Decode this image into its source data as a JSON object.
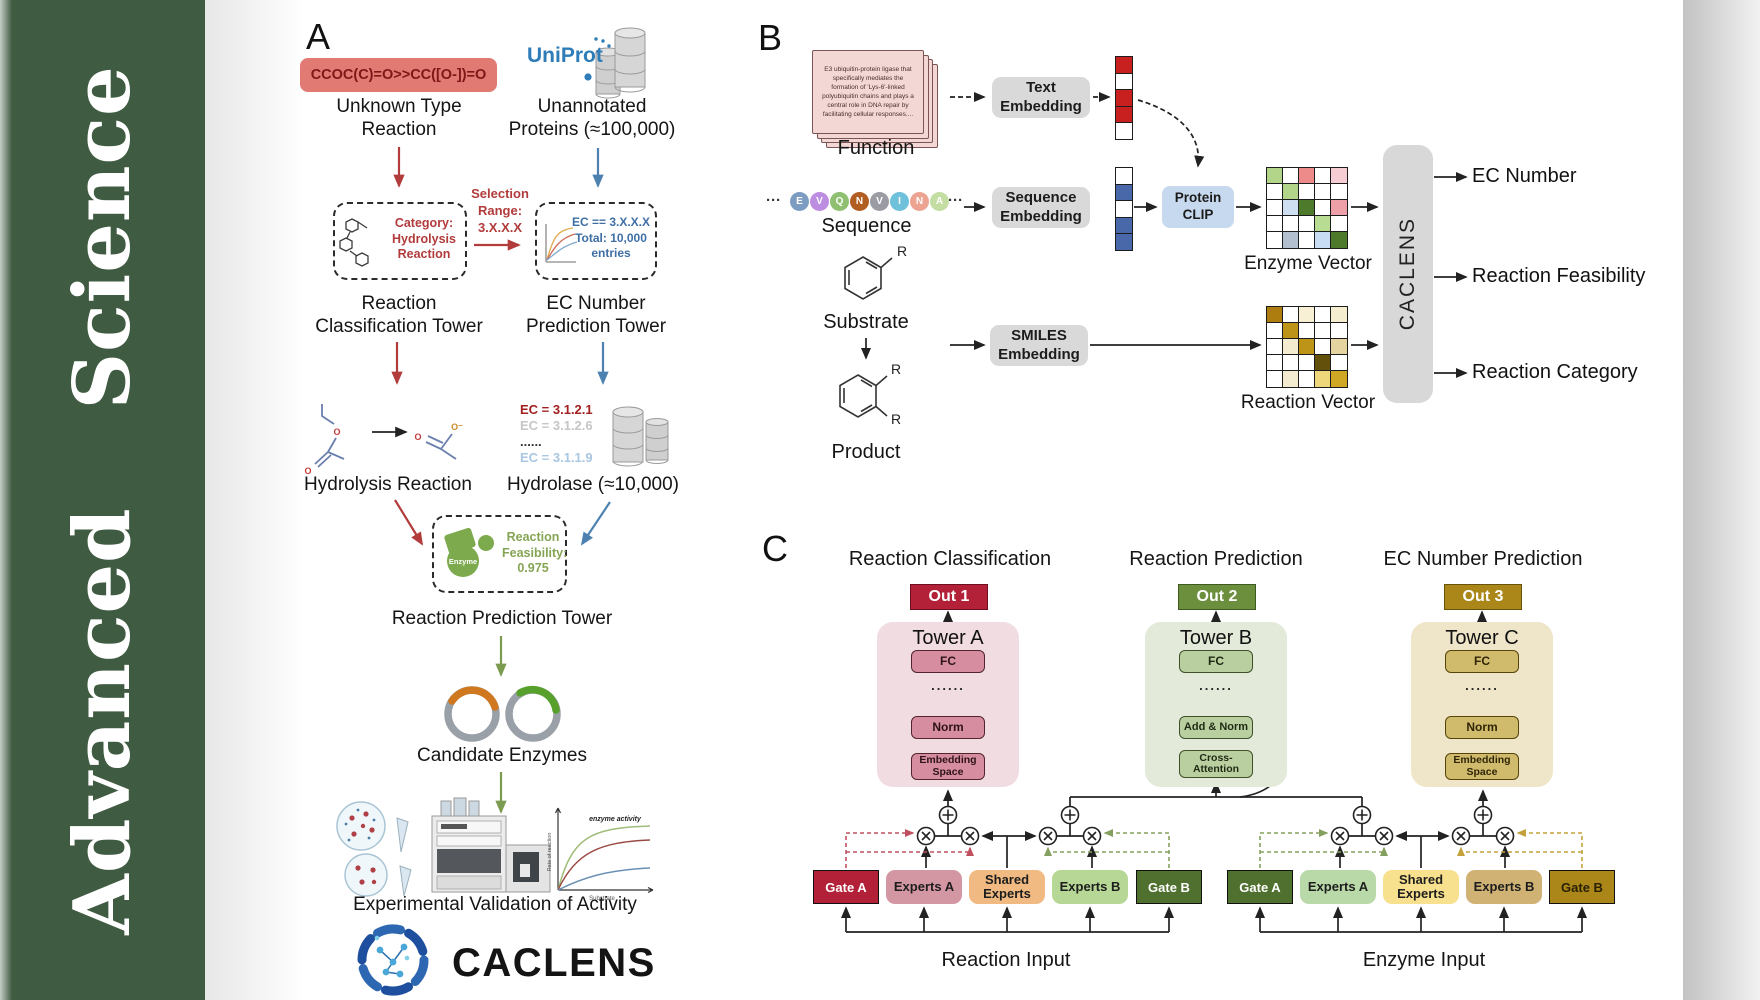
{
  "journal": {
    "name": "Advanced  Science",
    "sidebar_color": "#3f5b41"
  },
  "panel_a": {
    "label": "A",
    "smiles": "CCOC(C)=O>>CC([O-])=O",
    "unknown_reaction": "Unknown Type\nReaction",
    "uniprot": "UniProt",
    "unannotated": "Unannotated\nProteins (≈100,000)",
    "selection_range": "Selection\nRange:\n3.X.X.X",
    "category_box": "Category:\nHydrolysis\nReaction",
    "ec_box": "EC == 3.X.X.X\nTotal: 10,000\nentries",
    "classification_tower": "Reaction\nClassification Tower",
    "ec_tower": "EC Number\nPrediction Tower",
    "ec_list": [
      {
        "text": "EC = 3.1.2.1",
        "color": "#a32020"
      },
      {
        "text": "EC = 3.1.2.6",
        "color": "#c6c6c6"
      },
      {
        "text": "......",
        "color": "#333333"
      },
      {
        "text": "EC = 3.1.1.9",
        "color": "#a9c7e2"
      }
    ],
    "hydrolysis_reaction": "Hydrolysis Reaction",
    "hydrolase": "Hydrolase (≈10,000)",
    "enzyme_badge": "Enzyme",
    "feasibility": "Reaction\nFeasibility:\n0.975",
    "prediction_tower": "Reaction Prediction Tower",
    "candidate_enzymes": "Candidate Enzymes",
    "activity_plot": {
      "curve_label": "enzyme activity",
      "ylabel": "Rate of reaction",
      "xlabel": "Substrate"
    },
    "validation": "Experimental Validation of Activity",
    "brand": "CACLENS",
    "atoms": {
      "o": "O",
      "o_minus": "O⁻",
      "r": "R"
    }
  },
  "panel_b": {
    "label": "B",
    "function_card": "E3 ubiquitin-protein ligase that specifically mediates the formation of 'Lys-6'-linked polyubiquitin chains and plays a central role in DNA repair by facilitating cellular responses....",
    "function_label": "Function",
    "ellipsis": "···",
    "sequence_residues": [
      {
        "letter": "E",
        "color": "#7d9cc2"
      },
      {
        "letter": "V",
        "color": "#bd8de2"
      },
      {
        "letter": "Q",
        "color": "#8fbf70"
      },
      {
        "letter": "N",
        "color": "#b25d22"
      },
      {
        "letter": "V",
        "color": "#9b9ba3"
      },
      {
        "letter": "I",
        "color": "#6fc0da"
      },
      {
        "letter": "N",
        "color": "#eda392"
      },
      {
        "letter": "A",
        "color": "#c3dda2"
      }
    ],
    "sequence_label": "Sequence",
    "substrate_label": "Substrate",
    "product_label": "Product",
    "text_embedding": "Text\nEmbedding",
    "sequence_embedding": "Sequence\nEmbedding",
    "smiles_embedding": "SMILES\nEmbedding",
    "protein_clip": "Protein\nCLIP",
    "text_vector": [
      "#c81f1f",
      "#ffffff",
      "#c81f1f",
      "#c81f1f",
      "#ffffff"
    ],
    "sequence_vector": [
      "#ffffff",
      "#4968aa",
      "#ffffff",
      "#4968aa",
      "#4968aa"
    ],
    "enzyme_vector_label": "Enzyme Vector",
    "reaction_vector_label": "Reaction Vector",
    "enzyme_grid": [
      "#b2d589",
      "#ffffff",
      "#ed8a8a",
      "#ffffff",
      "#f6cdd2",
      "#ffffff",
      "#b2d589",
      "#ffffff",
      "#ffffff",
      "#ffffff",
      "#ffffff",
      "#cfdff2",
      "#4e7a2b",
      "#ffffff",
      "#eda0a8",
      "#ffffff",
      "#ffffff",
      "#ffffff",
      "#b8dc92",
      "#ffffff",
      "#ffffff",
      "#b2c0d0",
      "#ffffff",
      "#c8ddf4",
      "#4e7a2b"
    ],
    "reaction_grid": [
      "#ad7d10",
      "#ffffff",
      "#f7f0d4",
      "#ffffff",
      "#f5edd0",
      "#ffffff",
      "#bd9318",
      "#ffffff",
      "#ffffff",
      "#ffffff",
      "#ffffff",
      "#f3ecd0",
      "#bd9318",
      "#ffffff",
      "#e5d4a0",
      "#ffffff",
      "#ffffff",
      "#ffffff",
      "#63500a",
      "#ffffff",
      "#ffffff",
      "#f3ecd0",
      "#ffffff",
      "#eed77a",
      "#d0a825"
    ],
    "caclens_bar": "CACLENS",
    "outputs": [
      "EC Number",
      "Reaction Feasibility",
      "Reaction Category"
    ]
  },
  "panel_c": {
    "label": "C",
    "sections": [
      "Reaction Classification",
      "Reaction Prediction",
      "EC Number Prediction"
    ],
    "outs": [
      "Out 1",
      "Out 2",
      "Out 3"
    ],
    "towers": [
      {
        "name": "Tower A",
        "fc": "FC",
        "dots": "......",
        "mid": "Norm",
        "base": "Embedding\nSpace"
      },
      {
        "name": "Tower B",
        "fc": "FC",
        "dots": "......",
        "mid": "Add & Norm",
        "base": "Cross-\nAttention"
      },
      {
        "name": "Tower C",
        "fc": "FC",
        "dots": "......",
        "mid": "Norm",
        "base": "Embedding\nSpace"
      }
    ],
    "reaction_moe": {
      "gate_a": "Gate A",
      "experts_a": "Experts A",
      "shared": "Shared\nExperts",
      "experts_b": "Experts B",
      "gate_b": "Gate B",
      "input": "Reaction Input"
    },
    "enzyme_moe": {
      "gate_a": "Gate A",
      "experts_a": "Experts A",
      "shared": "Shared\nExperts",
      "experts_b": "Experts B",
      "gate_b": "Gate B",
      "input": "Enzyme Input"
    },
    "colors": {
      "out1": "#b22138",
      "out2": "#6b8f3d",
      "out3": "#aa8718",
      "gate_red": "#b22138",
      "gate_green": "#50702f",
      "gate_gold": "#aa8718"
    }
  }
}
